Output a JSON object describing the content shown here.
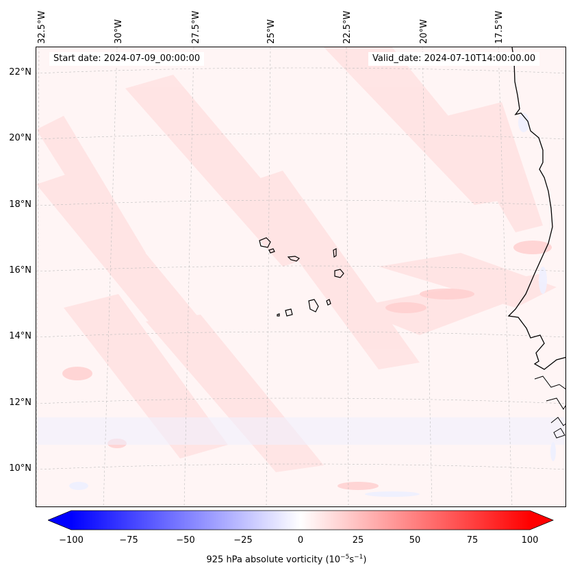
{
  "map": {
    "start_date": "Start date: 2024-07-09_00:00:00",
    "valid_date": "Valid_date: 2024-07-10T14:00:00.00",
    "lon_labels": [
      "32.5°W",
      "30°W",
      "27.5°W",
      "25°W",
      "22.5°W",
      "20°W",
      "17.5°W"
    ],
    "lat_labels": [
      "22°N",
      "20°N",
      "18°N",
      "16°N",
      "14°N",
      "12°N",
      "10°N"
    ],
    "field_name": "925 hPa absolute vorticity",
    "region": "Cabo Verde / West African coast"
  },
  "colorbar": {
    "title_prefix": "925 hPa absolute vorticity (10",
    "title_exp1": "−5",
    "title_mid": "s",
    "title_exp2": "−1",
    "title_suffix": ")",
    "ticks": [
      "−100",
      "−75",
      "−50",
      "−25",
      "0",
      "25",
      "50",
      "75",
      "100"
    ],
    "min": -100,
    "max": 100,
    "cmap_low": "#0000ff",
    "cmap_mid": "#ffffff",
    "cmap_high": "#ff0000"
  }
}
